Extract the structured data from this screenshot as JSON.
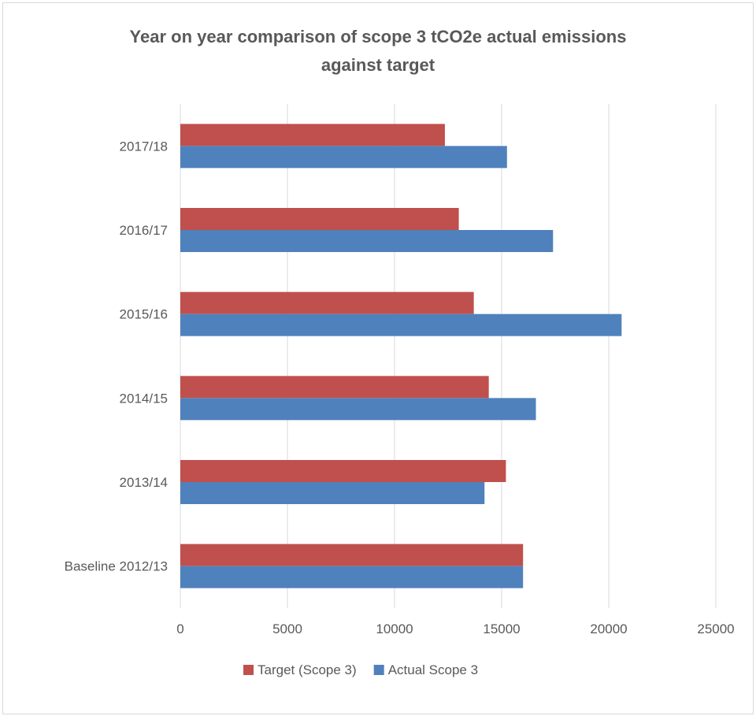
{
  "chart_data": {
    "type": "bar",
    "orientation": "horizontal",
    "title": "Year on year comparison of scope 3 tCO2e actual emissions against target",
    "title_lines": [
      "Year on year comparison of scope 3 tCO2e actual emissions",
      "against target"
    ],
    "categories": [
      "Baseline 2012/13",
      "2013/14",
      "2014/15",
      "2015/16",
      "2016/17",
      "2017/18"
    ],
    "series": [
      {
        "name": "Target (Scope 3)",
        "color": "#c0504d",
        "values": [
          16000,
          15200,
          14400,
          13700,
          13000,
          12350
        ]
      },
      {
        "name": "Actual Scope 3",
        "color": "#4f81bd",
        "values": [
          16000,
          14200,
          16600,
          20600,
          17400,
          15250
        ]
      }
    ],
    "xlim": [
      0,
      25000
    ],
    "xticks": [
      "0",
      "5000",
      "10000",
      "15000",
      "20000",
      "25000"
    ],
    "xlabel": "",
    "ylabel": "",
    "grid": "vertical",
    "legend": "bottom"
  }
}
